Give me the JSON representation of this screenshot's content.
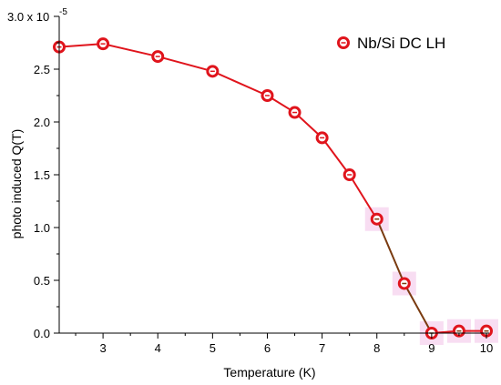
{
  "chart_data": {
    "type": "line",
    "title": "",
    "xlabel": "Temperature (K)",
    "ylabel": "photo induced Q(T)",
    "x_ticks": [
      "3",
      "4",
      "5",
      "6",
      "7",
      "8",
      "9",
      "10"
    ],
    "y_ticks": [
      "0.0",
      "0.5",
      "1.0",
      "1.5",
      "2.0",
      "2.5"
    ],
    "y_top_label": "3.0 x 10",
    "y_exponent": "-5",
    "xlim": [
      2.2,
      10.05
    ],
    "ylim": [
      0,
      3.0
    ],
    "grid": false,
    "legend_position": "top-right",
    "series": [
      {
        "name": "Nb/Si DC LH",
        "color": "#e0141c",
        "x": [
          2.2,
          3,
          4,
          5,
          6,
          6.5,
          7,
          7.5,
          8,
          8.5,
          9,
          9.5,
          10
        ],
        "y": [
          2.71,
          2.74,
          2.62,
          2.48,
          2.25,
          2.09,
          1.85,
          1.5,
          1.08,
          0.47,
          0.0,
          0.02,
          0.02
        ]
      }
    ],
    "highlight_color": "#f4c6ea",
    "dark_line_color": "#7a3b10"
  }
}
